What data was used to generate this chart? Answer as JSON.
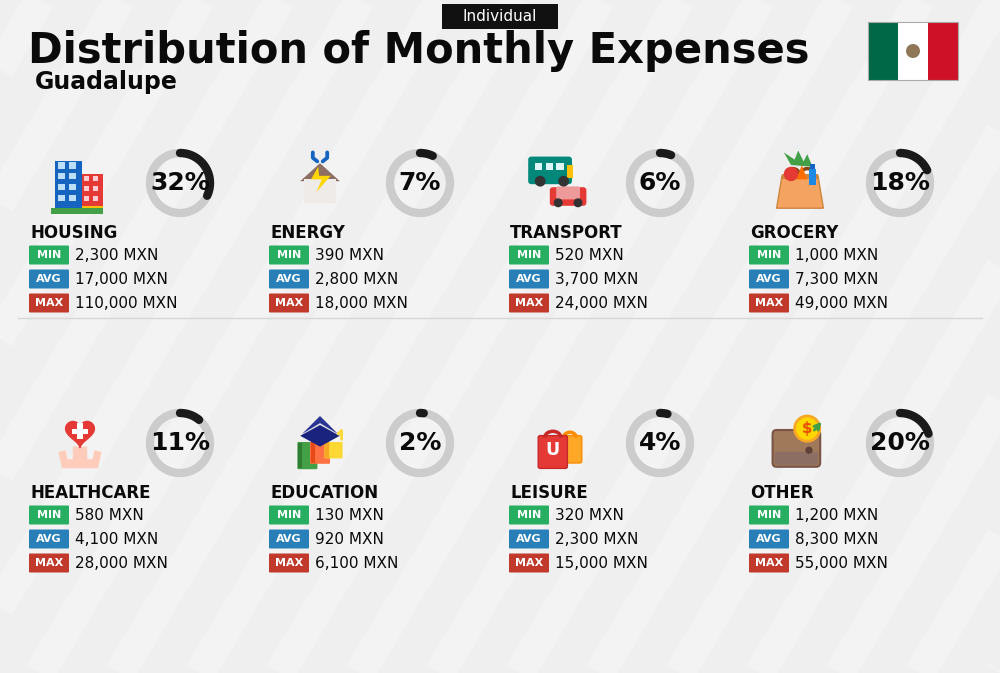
{
  "title": "Distribution of Monthly Expenses",
  "subtitle": "Individual",
  "city": "Guadalupe",
  "bg_color": "#efefef",
  "categories": [
    {
      "name": "HOUSING",
      "pct": 32,
      "min": "2,300 MXN",
      "avg": "17,000 MXN",
      "max": "110,000 MXN",
      "row": 0,
      "col": 0
    },
    {
      "name": "ENERGY",
      "pct": 7,
      "min": "390 MXN",
      "avg": "2,800 MXN",
      "max": "18,000 MXN",
      "row": 0,
      "col": 1
    },
    {
      "name": "TRANSPORT",
      "pct": 6,
      "min": "520 MXN",
      "avg": "3,700 MXN",
      "max": "24,000 MXN",
      "row": 0,
      "col": 2
    },
    {
      "name": "GROCERY",
      "pct": 18,
      "min": "1,000 MXN",
      "avg": "7,300 MXN",
      "max": "49,000 MXN",
      "row": 0,
      "col": 3
    },
    {
      "name": "HEALTHCARE",
      "pct": 11,
      "min": "580 MXN",
      "avg": "4,100 MXN",
      "max": "28,000 MXN",
      "row": 1,
      "col": 0
    },
    {
      "name": "EDUCATION",
      "pct": 2,
      "min": "130 MXN",
      "avg": "920 MXN",
      "max": "6,100 MXN",
      "row": 1,
      "col": 1
    },
    {
      "name": "LEISURE",
      "pct": 4,
      "min": "320 MXN",
      "avg": "2,300 MXN",
      "max": "15,000 MXN",
      "row": 1,
      "col": 2
    },
    {
      "name": "OTHER",
      "pct": 20,
      "min": "1,200 MXN",
      "avg": "8,300 MXN",
      "max": "55,000 MXN",
      "row": 1,
      "col": 3
    }
  ],
  "min_color": "#27ae60",
  "avg_color": "#2980b9",
  "max_color": "#c0392b",
  "arc_dark": "#1a1a1a",
  "arc_light": "#cccccc",
  "title_fs": 30,
  "subtitle_fs": 11,
  "city_fs": 17,
  "cat_fs": 12,
  "val_fs": 11,
  "pct_fs": 18,
  "badge_label_fs": 8
}
